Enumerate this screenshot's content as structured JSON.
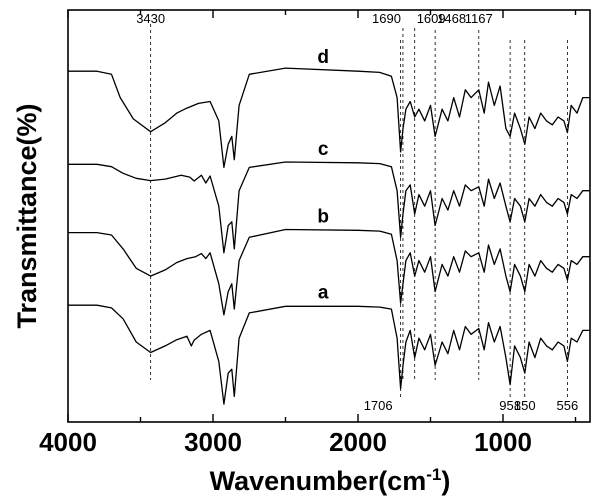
{
  "chart_data": {
    "type": "line",
    "xlabel": "Wavenumber(cm",
    "xlabel_sup": "-1",
    "xlabel_close": ")",
    "ylabel": "Transmittance(%)",
    "xlim": [
      4000,
      400
    ],
    "x_reversed": true,
    "x_ticks": [
      4000,
      3000,
      2000,
      1000
    ],
    "x_tick_labels": [
      "4000",
      "3000",
      "2000",
      "1000"
    ],
    "y_ticks_shown": false,
    "grid": false,
    "series": [
      {
        "name": "d",
        "points": [
          [
            4000,
            0.868
          ],
          [
            3800,
            0.868
          ],
          [
            3700,
            0.86
          ],
          [
            3640,
            0.8
          ],
          [
            3550,
            0.745
          ],
          [
            3430,
            0.712
          ],
          [
            3330,
            0.735
          ],
          [
            3250,
            0.76
          ],
          [
            3180,
            0.773
          ],
          [
            3100,
            0.785
          ],
          [
            3020,
            0.79
          ],
          [
            2960,
            0.74
          ],
          [
            2925,
            0.62
          ],
          [
            2895,
            0.68
          ],
          [
            2870,
            0.7
          ],
          [
            2853,
            0.64
          ],
          [
            2820,
            0.78
          ],
          [
            2750,
            0.86
          ],
          [
            2500,
            0.876
          ],
          [
            2000,
            0.868
          ],
          [
            1850,
            0.865
          ],
          [
            1770,
            0.855
          ],
          [
            1730,
            0.8
          ],
          [
            1706,
            0.66
          ],
          [
            1690,
            0.72
          ],
          [
            1670,
            0.77
          ],
          [
            1640,
            0.79
          ],
          [
            1609,
            0.75
          ],
          [
            1580,
            0.77
          ],
          [
            1540,
            0.74
          ],
          [
            1500,
            0.78
          ],
          [
            1468,
            0.7
          ],
          [
            1420,
            0.77
          ],
          [
            1380,
            0.74
          ],
          [
            1340,
            0.8
          ],
          [
            1300,
            0.75
          ],
          [
            1260,
            0.82
          ],
          [
            1220,
            0.8
          ],
          [
            1167,
            0.82
          ],
          [
            1130,
            0.76
          ],
          [
            1100,
            0.84
          ],
          [
            1060,
            0.78
          ],
          [
            1020,
            0.83
          ],
          [
            980,
            0.72
          ],
          [
            951,
            0.7
          ],
          [
            920,
            0.76
          ],
          [
            880,
            0.72
          ],
          [
            850,
            0.68
          ],
          [
            820,
            0.75
          ],
          [
            780,
            0.72
          ],
          [
            740,
            0.76
          ],
          [
            700,
            0.74
          ],
          [
            660,
            0.73
          ],
          [
            620,
            0.75
          ],
          [
            580,
            0.74
          ],
          [
            556,
            0.71
          ],
          [
            530,
            0.78
          ],
          [
            490,
            0.76
          ],
          [
            450,
            0.8
          ],
          [
            400,
            0.8
          ]
        ]
      },
      {
        "name": "c",
        "points": [
          [
            4000,
            0.628
          ],
          [
            3800,
            0.628
          ],
          [
            3700,
            0.622
          ],
          [
            3620,
            0.605
          ],
          [
            3530,
            0.592
          ],
          [
            3430,
            0.586
          ],
          [
            3330,
            0.59
          ],
          [
            3220,
            0.6
          ],
          [
            3160,
            0.595
          ],
          [
            3130,
            0.585
          ],
          [
            3080,
            0.6
          ],
          [
            3050,
            0.58
          ],
          [
            3020,
            0.598
          ],
          [
            2960,
            0.52
          ],
          [
            2925,
            0.4
          ],
          [
            2895,
            0.47
          ],
          [
            2870,
            0.48
          ],
          [
            2853,
            0.41
          ],
          [
            2820,
            0.56
          ],
          [
            2750,
            0.62
          ],
          [
            2500,
            0.634
          ],
          [
            2000,
            0.632
          ],
          [
            1850,
            0.63
          ],
          [
            1770,
            0.622
          ],
          [
            1730,
            0.56
          ],
          [
            1706,
            0.44
          ],
          [
            1690,
            0.5
          ],
          [
            1670,
            0.56
          ],
          [
            1640,
            0.575
          ],
          [
            1609,
            0.5
          ],
          [
            1580,
            0.55
          ],
          [
            1540,
            0.52
          ],
          [
            1500,
            0.56
          ],
          [
            1468,
            0.47
          ],
          [
            1420,
            0.54
          ],
          [
            1380,
            0.51
          ],
          [
            1340,
            0.56
          ],
          [
            1300,
            0.52
          ],
          [
            1260,
            0.575
          ],
          [
            1220,
            0.56
          ],
          [
            1167,
            0.57
          ],
          [
            1130,
            0.52
          ],
          [
            1100,
            0.59
          ],
          [
            1060,
            0.54
          ],
          [
            1020,
            0.58
          ],
          [
            980,
            0.52
          ],
          [
            951,
            0.48
          ],
          [
            920,
            0.54
          ],
          [
            880,
            0.52
          ],
          [
            850,
            0.48
          ],
          [
            820,
            0.54
          ],
          [
            780,
            0.52
          ],
          [
            740,
            0.55
          ],
          [
            700,
            0.53
          ],
          [
            660,
            0.52
          ],
          [
            620,
            0.54
          ],
          [
            580,
            0.53
          ],
          [
            556,
            0.5
          ],
          [
            530,
            0.55
          ],
          [
            490,
            0.54
          ],
          [
            450,
            0.56
          ],
          [
            400,
            0.56
          ]
        ]
      },
      {
        "name": "b",
        "points": [
          [
            4000,
            0.452
          ],
          [
            3800,
            0.452
          ],
          [
            3700,
            0.446
          ],
          [
            3620,
            0.41
          ],
          [
            3530,
            0.36
          ],
          [
            3430,
            0.34
          ],
          [
            3330,
            0.356
          ],
          [
            3250,
            0.375
          ],
          [
            3180,
            0.385
          ],
          [
            3120,
            0.39
          ],
          [
            3080,
            0.398
          ],
          [
            3050,
            0.385
          ],
          [
            3020,
            0.4
          ],
          [
            2960,
            0.32
          ],
          [
            2925,
            0.24
          ],
          [
            2895,
            0.3
          ],
          [
            2870,
            0.32
          ],
          [
            2853,
            0.255
          ],
          [
            2820,
            0.38
          ],
          [
            2750,
            0.44
          ],
          [
            2500,
            0.46
          ],
          [
            2000,
            0.458
          ],
          [
            1850,
            0.456
          ],
          [
            1770,
            0.448
          ],
          [
            1730,
            0.38
          ],
          [
            1706,
            0.27
          ],
          [
            1690,
            0.32
          ],
          [
            1670,
            0.38
          ],
          [
            1640,
            0.4
          ],
          [
            1609,
            0.34
          ],
          [
            1580,
            0.38
          ],
          [
            1540,
            0.35
          ],
          [
            1500,
            0.39
          ],
          [
            1468,
            0.3
          ],
          [
            1420,
            0.37
          ],
          [
            1380,
            0.34
          ],
          [
            1340,
            0.39
          ],
          [
            1300,
            0.35
          ],
          [
            1260,
            0.405
          ],
          [
            1220,
            0.39
          ],
          [
            1167,
            0.4
          ],
          [
            1130,
            0.35
          ],
          [
            1100,
            0.42
          ],
          [
            1060,
            0.37
          ],
          [
            1020,
            0.41
          ],
          [
            980,
            0.34
          ],
          [
            951,
            0.3
          ],
          [
            920,
            0.37
          ],
          [
            880,
            0.34
          ],
          [
            850,
            0.3
          ],
          [
            820,
            0.37
          ],
          [
            780,
            0.34
          ],
          [
            740,
            0.38
          ],
          [
            700,
            0.36
          ],
          [
            660,
            0.35
          ],
          [
            620,
            0.37
          ],
          [
            580,
            0.36
          ],
          [
            556,
            0.33
          ],
          [
            530,
            0.38
          ],
          [
            490,
            0.37
          ],
          [
            450,
            0.39
          ],
          [
            400,
            0.39
          ]
        ]
      },
      {
        "name": "a",
        "points": [
          [
            4000,
            0.265
          ],
          [
            3800,
            0.265
          ],
          [
            3700,
            0.258
          ],
          [
            3620,
            0.23
          ],
          [
            3530,
            0.17
          ],
          [
            3430,
            0.143
          ],
          [
            3330,
            0.16
          ],
          [
            3250,
            0.176
          ],
          [
            3180,
            0.185
          ],
          [
            3150,
            0.16
          ],
          [
            3130,
            0.175
          ],
          [
            3080,
            0.19
          ],
          [
            3020,
            0.2
          ],
          [
            2960,
            0.12
          ],
          [
            2925,
            0.01
          ],
          [
            2895,
            0.09
          ],
          [
            2870,
            0.1
          ],
          [
            2853,
            0.03
          ],
          [
            2820,
            0.18
          ],
          [
            2750,
            0.245
          ],
          [
            2500,
            0.262
          ],
          [
            2000,
            0.262
          ],
          [
            1850,
            0.26
          ],
          [
            1770,
            0.255
          ],
          [
            1730,
            0.18
          ],
          [
            1706,
            0.05
          ],
          [
            1690,
            0.11
          ],
          [
            1670,
            0.17
          ],
          [
            1640,
            0.2
          ],
          [
            1609,
            0.13
          ],
          [
            1580,
            0.18
          ],
          [
            1540,
            0.15
          ],
          [
            1500,
            0.19
          ],
          [
            1468,
            0.11
          ],
          [
            1420,
            0.17
          ],
          [
            1380,
            0.14
          ],
          [
            1340,
            0.2
          ],
          [
            1300,
            0.15
          ],
          [
            1260,
            0.21
          ],
          [
            1220,
            0.19
          ],
          [
            1167,
            0.205
          ],
          [
            1130,
            0.15
          ],
          [
            1100,
            0.22
          ],
          [
            1060,
            0.17
          ],
          [
            1020,
            0.21
          ],
          [
            980,
            0.13
          ],
          [
            951,
            0.06
          ],
          [
            920,
            0.16
          ],
          [
            880,
            0.13
          ],
          [
            850,
            0.09
          ],
          [
            820,
            0.17
          ],
          [
            780,
            0.13
          ],
          [
            740,
            0.18
          ],
          [
            700,
            0.16
          ],
          [
            660,
            0.15
          ],
          [
            620,
            0.17
          ],
          [
            580,
            0.16
          ],
          [
            556,
            0.12
          ],
          [
            530,
            0.18
          ],
          [
            490,
            0.17
          ],
          [
            450,
            0.2
          ],
          [
            400,
            0.2
          ]
        ]
      }
    ],
    "annotations": {
      "guide_lines_x": [
        3430,
        1690,
        1609,
        1468,
        1167,
        1706,
        951,
        850,
        556
      ],
      "top_labels": [
        {
          "text": "3430",
          "x": 3430
        },
        {
          "text": "1690",
          "x": 1690
        },
        {
          "text": "1609",
          "x": 1609
        },
        {
          "text": "1468",
          "x": 1468
        },
        {
          "text": "1167",
          "x": 1167
        }
      ],
      "bottom_labels": [
        {
          "text": "1706",
          "x": 1706
        },
        {
          "text": "951",
          "x": 951
        },
        {
          "text": "850",
          "x": 850
        },
        {
          "text": "556",
          "x": 556
        }
      ]
    }
  }
}
